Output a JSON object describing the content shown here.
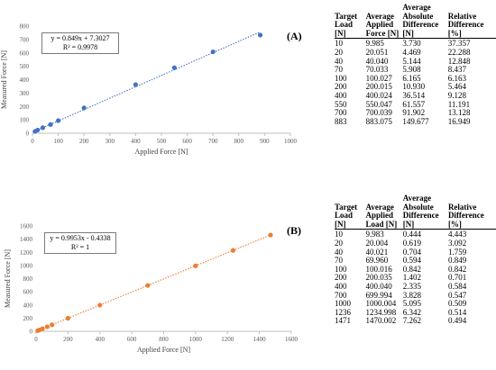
{
  "chart_data": [
    {
      "type": "scatter",
      "panel_label": "(A)",
      "xlabel": "Applied Force [N]",
      "ylabel": "Measured Force [N]",
      "xlim": [
        0,
        1000
      ],
      "ylim": [
        0,
        800
      ],
      "xticks": [
        "0",
        "100",
        "200",
        "300",
        "400",
        "500",
        "600",
        "700",
        "800",
        "900",
        "1000"
      ],
      "yticks": [
        "0",
        "100",
        "200",
        "300",
        "400",
        "500",
        "600",
        "700",
        "800"
      ],
      "grid": false,
      "marker_color": "#4472C4",
      "trendline": {
        "slope": 0.849,
        "intercept": 7.3027,
        "style": "dotted",
        "equation": "y = 0.849x + 7.3027",
        "r2": "R² = 0.9978"
      },
      "points": [
        {
          "x": 9.985,
          "y": 14
        },
        {
          "x": 20.051,
          "y": 24
        },
        {
          "x": 40.04,
          "y": 41
        },
        {
          "x": 70.033,
          "y": 65
        },
        {
          "x": 100.027,
          "y": 94
        },
        {
          "x": 200.015,
          "y": 189
        },
        {
          "x": 400.024,
          "y": 363
        },
        {
          "x": 550.047,
          "y": 489
        },
        {
          "x": 700.039,
          "y": 608
        },
        {
          "x": 883.075,
          "y": 733
        }
      ]
    },
    {
      "type": "scatter",
      "panel_label": "(B)",
      "xlabel": "Applied Force [N]",
      "ylabel": "Measured Force [N]",
      "xlim": [
        0,
        1600
      ],
      "ylim": [
        0,
        1600
      ],
      "xticks": [
        "0",
        "200",
        "400",
        "600",
        "800",
        "1000",
        "1200",
        "1400",
        "1600"
      ],
      "yticks": [
        "0",
        "200",
        "400",
        "600",
        "800",
        "1000",
        "1200",
        "1400",
        "1600"
      ],
      "grid": false,
      "marker_color": "#ED7D31",
      "trendline": {
        "slope": 0.9953,
        "intercept": -0.4338,
        "style": "dotted",
        "equation": "y = 0.9953x - 0.4338",
        "r2": "R² = 1"
      },
      "points": [
        {
          "x": 9.983,
          "y": 9.5
        },
        {
          "x": 20.004,
          "y": 19.4
        },
        {
          "x": 40.021,
          "y": 39.3
        },
        {
          "x": 69.96,
          "y": 69.3
        },
        {
          "x": 100.016,
          "y": 99.2
        },
        {
          "x": 200.035,
          "y": 198.6
        },
        {
          "x": 400.04,
          "y": 397.7
        },
        {
          "x": 699.994,
          "y": 696.2
        },
        {
          "x": 1000.004,
          "y": 994.9
        },
        {
          "x": 1234.998,
          "y": 1228.7
        },
        {
          "x": 1470.002,
          "y": 1462.6
        }
      ]
    }
  ],
  "tables": {
    "a": {
      "headers": [
        "Target Load [N]",
        "Average Applied Force [N]",
        "Average Absolute Difference [N]",
        "Relative Difference [%]"
      ],
      "rows": [
        [
          "10",
          "9.985",
          "3.730",
          "37.357"
        ],
        [
          "20",
          "20.051",
          "4.469",
          "22.288"
        ],
        [
          "40",
          "40.040",
          "5.144",
          "12.848"
        ],
        [
          "70",
          "70.033",
          "5.908",
          "8.437"
        ],
        [
          "100",
          "100.027",
          "6.165",
          "6.163"
        ],
        [
          "200",
          "200.015",
          "10.930",
          "5.464"
        ],
        [
          "400",
          "400.024",
          "36.514",
          "9.128"
        ],
        [
          "550",
          "550.047",
          "61.557",
          "11.191"
        ],
        [
          "700",
          "700.039",
          "91.902",
          "13.128"
        ],
        [
          "883",
          "883.075",
          "149.677",
          "16.949"
        ]
      ]
    },
    "b": {
      "headers": [
        "Target Load [N]",
        "Average Applied Load [N]",
        "Average Absolute Difference [N]",
        "Relative Difference [%]"
      ],
      "rows": [
        [
          "10",
          "9.983",
          "0.444",
          "4.443"
        ],
        [
          "20",
          "20.004",
          "0.619",
          "3.092"
        ],
        [
          "40",
          "40.021",
          "0.704",
          "1.759"
        ],
        [
          "70",
          "69.960",
          "0.594",
          "0.849"
        ],
        [
          "100",
          "100.016",
          "0.842",
          "0.842"
        ],
        [
          "200",
          "200.035",
          "1.402",
          "0.701"
        ],
        [
          "400",
          "400.040",
          "2.335",
          "0.584"
        ],
        [
          "700",
          "699.994",
          "3.828",
          "0.547"
        ],
        [
          "1000",
          "1000.004",
          "5.095",
          "0.509"
        ],
        [
          "1236",
          "1234.998",
          "6.342",
          "0.514"
        ],
        [
          "1471",
          "1470.002",
          "7.262",
          "0.494"
        ]
      ]
    }
  }
}
